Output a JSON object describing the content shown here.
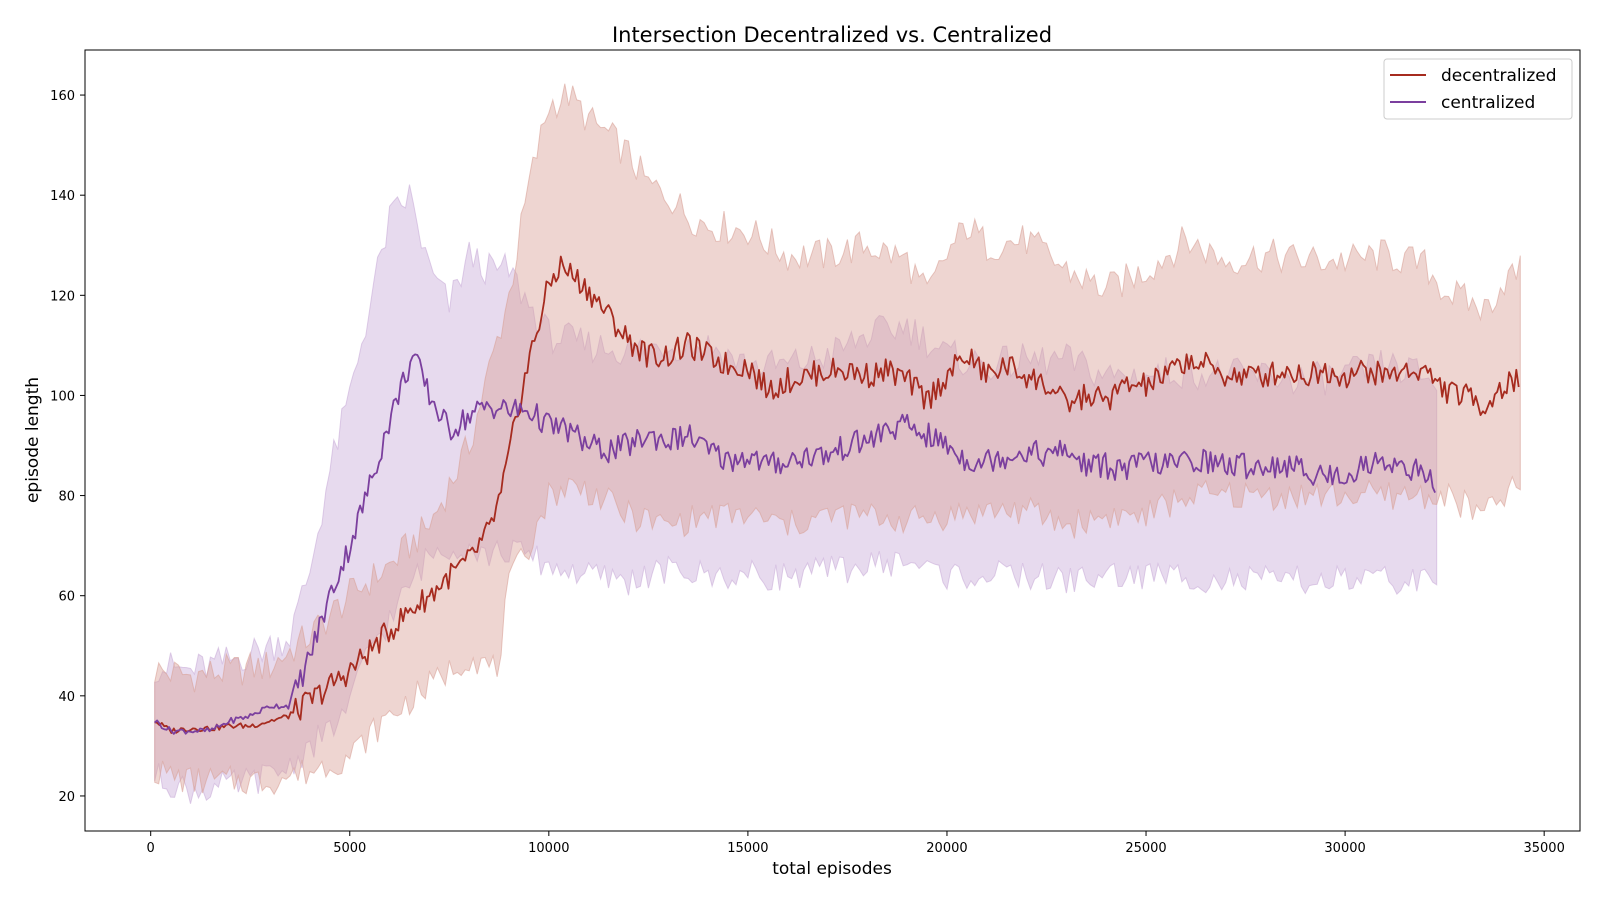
{
  "chart_data": {
    "type": "line",
    "title": "Intersection Decentralized vs. Centralized",
    "xlabel": "total episodes",
    "ylabel": "episode length",
    "xlim": [
      -1650,
      35900
    ],
    "ylim": [
      13,
      169
    ],
    "xticks": [
      0,
      5000,
      10000,
      15000,
      20000,
      25000,
      30000,
      35000
    ],
    "yticks": [
      20,
      40,
      60,
      80,
      100,
      120,
      140,
      160
    ],
    "grid": false,
    "legend_position": "top-right",
    "series": [
      {
        "name": "decentralized",
        "color": "#a62b1f",
        "band_color": "#d9a198",
        "mean": [
          [
            100,
            35
          ],
          [
            500,
            33
          ],
          [
            1000,
            33.5
          ],
          [
            1500,
            33.5
          ],
          [
            2000,
            34
          ],
          [
            2500,
            34
          ],
          [
            3000,
            35
          ],
          [
            3500,
            36
          ],
          [
            4000,
            39
          ],
          [
            4500,
            42
          ],
          [
            5000,
            45
          ],
          [
            5500,
            49
          ],
          [
            6000,
            53
          ],
          [
            6500,
            57
          ],
          [
            7000,
            60
          ],
          [
            7500,
            64
          ],
          [
            8000,
            67
          ],
          [
            8500,
            73
          ],
          [
            8800,
            80
          ],
          [
            9000,
            88
          ],
          [
            9300,
            100
          ],
          [
            9600,
            110
          ],
          [
            10000,
            122
          ],
          [
            10300,
            126
          ],
          [
            10600,
            124
          ],
          [
            11000,
            121
          ],
          [
            11500,
            116
          ],
          [
            12000,
            111
          ],
          [
            12500,
            108
          ],
          [
            13000,
            108
          ],
          [
            13500,
            110
          ],
          [
            14000,
            108
          ],
          [
            14500,
            106
          ],
          [
            15000,
            106
          ],
          [
            15500,
            101
          ],
          [
            16000,
            103
          ],
          [
            16500,
            104
          ],
          [
            17000,
            105
          ],
          [
            17500,
            105
          ],
          [
            18000,
            104
          ],
          [
            18500,
            105
          ],
          [
            19000,
            103
          ],
          [
            19500,
            99
          ],
          [
            20000,
            104
          ],
          [
            20500,
            108
          ],
          [
            21000,
            104
          ],
          [
            21500,
            106
          ],
          [
            22000,
            104
          ],
          [
            22500,
            102
          ],
          [
            23000,
            98
          ],
          [
            23500,
            100
          ],
          [
            24000,
            99
          ],
          [
            24500,
            102
          ],
          [
            25000,
            102
          ],
          [
            25500,
            104
          ],
          [
            26000,
            107
          ],
          [
            26500,
            106
          ],
          [
            27000,
            104
          ],
          [
            27500,
            104
          ],
          [
            28000,
            104
          ],
          [
            28500,
            105
          ],
          [
            29000,
            104
          ],
          [
            29500,
            105
          ],
          [
            30000,
            104
          ],
          [
            30500,
            105
          ],
          [
            31000,
            104
          ],
          [
            31500,
            105
          ],
          [
            32000,
            105
          ],
          [
            32500,
            101
          ],
          [
            33000,
            100
          ],
          [
            33500,
            98
          ],
          [
            34000,
            102
          ],
          [
            34400,
            103
          ]
        ],
        "upper": [
          [
            100,
            45
          ],
          [
            1000,
            44
          ],
          [
            2000,
            45
          ],
          [
            3000,
            46
          ],
          [
            4000,
            52
          ],
          [
            5000,
            60
          ],
          [
            6000,
            66
          ],
          [
            7000,
            74
          ],
          [
            8000,
            90
          ],
          [
            9000,
            120
          ],
          [
            9500,
            142
          ],
          [
            10000,
            158
          ],
          [
            10500,
            160
          ],
          [
            11000,
            155
          ],
          [
            11500,
            152
          ],
          [
            12000,
            148
          ],
          [
            12500,
            142
          ],
          [
            13000,
            140
          ],
          [
            13500,
            136
          ],
          [
            14000,
            134
          ],
          [
            15000,
            133
          ],
          [
            16000,
            128
          ],
          [
            17000,
            128
          ],
          [
            18000,
            130
          ],
          [
            19000,
            127
          ],
          [
            19500,
            120
          ],
          [
            20000,
            128
          ],
          [
            20500,
            134
          ],
          [
            21000,
            130
          ],
          [
            22000,
            131
          ],
          [
            23000,
            125
          ],
          [
            24000,
            121
          ],
          [
            25000,
            125
          ],
          [
            26000,
            131
          ],
          [
            27000,
            127
          ],
          [
            28000,
            128
          ],
          [
            29000,
            127
          ],
          [
            30000,
            127
          ],
          [
            31000,
            128
          ],
          [
            32000,
            126
          ],
          [
            32500,
            121
          ],
          [
            33000,
            119
          ],
          [
            33500,
            117
          ],
          [
            34000,
            123
          ],
          [
            34400,
            125
          ]
        ],
        "lower": [
          [
            100,
            25
          ],
          [
            1000,
            23
          ],
          [
            2000,
            23
          ],
          [
            3000,
            23
          ],
          [
            4000,
            25
          ],
          [
            5000,
            28
          ],
          [
            6000,
            36
          ],
          [
            7000,
            42
          ],
          [
            8000,
            48
          ],
          [
            8700,
            45
          ],
          [
            9000,
            62
          ],
          [
            9500,
            70
          ],
          [
            10000,
            80
          ],
          [
            10500,
            82
          ],
          [
            11000,
            81
          ],
          [
            12000,
            76
          ],
          [
            13000,
            74
          ],
          [
            14000,
            76
          ],
          [
            15000,
            76
          ],
          [
            16000,
            74
          ],
          [
            17000,
            76
          ],
          [
            18000,
            76
          ],
          [
            19000,
            75
          ],
          [
            20000,
            76
          ],
          [
            21000,
            77
          ],
          [
            22000,
            77
          ],
          [
            23000,
            74
          ],
          [
            24000,
            76
          ],
          [
            25000,
            76
          ],
          [
            26000,
            80
          ],
          [
            27000,
            80
          ],
          [
            28000,
            80
          ],
          [
            29000,
            80
          ],
          [
            30000,
            80
          ],
          [
            31000,
            80
          ],
          [
            32000,
            80
          ],
          [
            32500,
            80
          ],
          [
            33000,
            78
          ],
          [
            33500,
            76
          ],
          [
            34000,
            80
          ],
          [
            34400,
            82
          ]
        ]
      },
      {
        "name": "centralized",
        "color": "#7b3f9e",
        "band_color": "#c9aed9",
        "mean": [
          [
            100,
            35
          ],
          [
            500,
            33
          ],
          [
            1000,
            33
          ],
          [
            1500,
            33
          ],
          [
            2000,
            35
          ],
          [
            2500,
            36
          ],
          [
            3000,
            38
          ],
          [
            3500,
            38
          ],
          [
            4000,
            48
          ],
          [
            4500,
            60
          ],
          [
            5000,
            70
          ],
          [
            5500,
            82
          ],
          [
            6000,
            95
          ],
          [
            6300,
            102
          ],
          [
            6600,
            108
          ],
          [
            7000,
            100
          ],
          [
            7500,
            93
          ],
          [
            8000,
            96
          ],
          [
            8500,
            98
          ],
          [
            9000,
            97
          ],
          [
            9500,
            97
          ],
          [
            10000,
            94
          ],
          [
            10500,
            93
          ],
          [
            11000,
            90
          ],
          [
            11500,
            89
          ],
          [
            12000,
            90
          ],
          [
            12500,
            92
          ],
          [
            13000,
            91
          ],
          [
            13500,
            92
          ],
          [
            14000,
            89
          ],
          [
            14500,
            87
          ],
          [
            15000,
            88
          ],
          [
            15500,
            86
          ],
          [
            16000,
            87
          ],
          [
            16500,
            88
          ],
          [
            17000,
            88
          ],
          [
            17500,
            90
          ],
          [
            18000,
            91
          ],
          [
            18500,
            93
          ],
          [
            19000,
            94
          ],
          [
            19500,
            92
          ],
          [
            20000,
            90
          ],
          [
            20500,
            87
          ],
          [
            21000,
            87
          ],
          [
            21500,
            88
          ],
          [
            22000,
            89
          ],
          [
            22500,
            88
          ],
          [
            23000,
            89
          ],
          [
            23500,
            86
          ],
          [
            24000,
            86
          ],
          [
            24500,
            85
          ],
          [
            25000,
            87
          ],
          [
            25500,
            86
          ],
          [
            26000,
            87
          ],
          [
            26500,
            87
          ],
          [
            27000,
            86
          ],
          [
            27500,
            86
          ],
          [
            28000,
            86
          ],
          [
            28500,
            86
          ],
          [
            29000,
            85
          ],
          [
            29500,
            84
          ],
          [
            30000,
            84
          ],
          [
            30500,
            86
          ],
          [
            31000,
            87
          ],
          [
            31500,
            86
          ],
          [
            32000,
            84
          ],
          [
            32300,
            82
          ]
        ],
        "upper": [
          [
            100,
            46
          ],
          [
            1000,
            45
          ],
          [
            2000,
            47
          ],
          [
            3000,
            50
          ],
          [
            3500,
            52
          ],
          [
            4000,
            65
          ],
          [
            4500,
            85
          ],
          [
            5000,
            100
          ],
          [
            5500,
            118
          ],
          [
            6000,
            135
          ],
          [
            6500,
            140
          ],
          [
            7000,
            125
          ],
          [
            7500,
            118
          ],
          [
            8000,
            128
          ],
          [
            8500,
            125
          ],
          [
            9000,
            125
          ],
          [
            9500,
            118
          ],
          [
            10000,
            112
          ],
          [
            11000,
            110
          ],
          [
            12000,
            109
          ],
          [
            13000,
            110
          ],
          [
            14000,
            110
          ],
          [
            15000,
            106
          ],
          [
            16000,
            106
          ],
          [
            17000,
            108
          ],
          [
            18000,
            112
          ],
          [
            19000,
            114
          ],
          [
            20000,
            108
          ],
          [
            21000,
            106
          ],
          [
            22000,
            107
          ],
          [
            23000,
            107
          ],
          [
            24000,
            104
          ],
          [
            25000,
            104
          ],
          [
            26000,
            105
          ],
          [
            27000,
            104
          ],
          [
            28000,
            104
          ],
          [
            29000,
            103
          ],
          [
            30000,
            104
          ],
          [
            31000,
            106
          ],
          [
            32000,
            104
          ],
          [
            32300,
            102
          ]
        ],
        "lower": [
          [
            100,
            24
          ],
          [
            1000,
            21
          ],
          [
            2000,
            22
          ],
          [
            3000,
            24
          ],
          [
            3500,
            26
          ],
          [
            4000,
            30
          ],
          [
            4500,
            33
          ],
          [
            5000,
            38
          ],
          [
            5500,
            50
          ],
          [
            6000,
            55
          ],
          [
            6500,
            62
          ],
          [
            7000,
            68
          ],
          [
            7500,
            70
          ],
          [
            8000,
            70
          ],
          [
            8500,
            68
          ],
          [
            9000,
            69
          ],
          [
            9500,
            68
          ],
          [
            10000,
            66
          ],
          [
            11000,
            64
          ],
          [
            12000,
            63
          ],
          [
            13000,
            65
          ],
          [
            14000,
            64
          ],
          [
            15000,
            64
          ],
          [
            16000,
            64
          ],
          [
            17000,
            65
          ],
          [
            18000,
            66
          ],
          [
            19000,
            67
          ],
          [
            20000,
            64
          ],
          [
            21000,
            64
          ],
          [
            22000,
            64
          ],
          [
            23000,
            63
          ],
          [
            24000,
            64
          ],
          [
            25000,
            64
          ],
          [
            26000,
            64
          ],
          [
            27000,
            63
          ],
          [
            28000,
            63
          ],
          [
            29000,
            63
          ],
          [
            30000,
            63
          ],
          [
            31000,
            63
          ],
          [
            32000,
            63
          ],
          [
            32300,
            60
          ]
        ]
      }
    ]
  }
}
